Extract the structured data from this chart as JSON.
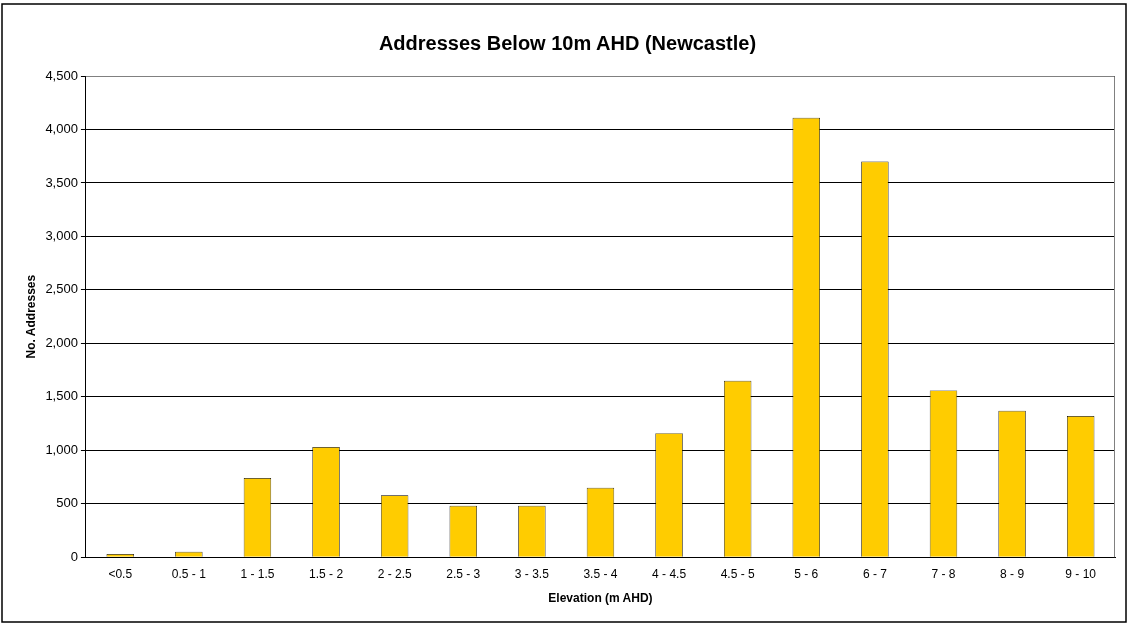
{
  "chart_data": {
    "type": "bar",
    "title": "Addresses Below 10m AHD (Newcastle)",
    "xlabel": "Elevation (m AHD)",
    "ylabel": "No. Addresses",
    "categories": [
      "<0.5",
      "0.5 - 1",
      "1 - 1.5",
      "1.5 - 2",
      "2 - 2.5",
      "2.5 - 3",
      "3 - 3.5",
      "3.5 - 4",
      "4 - 4.5",
      "4.5 - 5",
      "5 - 6",
      "6 - 7",
      "7 - 8",
      "8 - 9",
      "9 - 10"
    ],
    "values": [
      30,
      50,
      740,
      1030,
      580,
      480,
      480,
      650,
      1160,
      1650,
      4110,
      3700,
      1560,
      1370,
      1320
    ],
    "color": "#ffcc00",
    "ylim": [
      0,
      4500
    ],
    "yticks": [
      {
        "value": 0,
        "label": "0"
      },
      {
        "value": 500,
        "label": "500"
      },
      {
        "value": 1000,
        "label": "1,000"
      },
      {
        "value": 1500,
        "label": "1,500"
      },
      {
        "value": 2000,
        "label": "2,000"
      },
      {
        "value": 2500,
        "label": "2,500"
      },
      {
        "value": 3000,
        "label": "3,000"
      },
      {
        "value": 3500,
        "label": "3,500"
      },
      {
        "value": 4000,
        "label": "4,000"
      },
      {
        "value": 4500,
        "label": "4,500"
      }
    ],
    "grid": "y"
  }
}
